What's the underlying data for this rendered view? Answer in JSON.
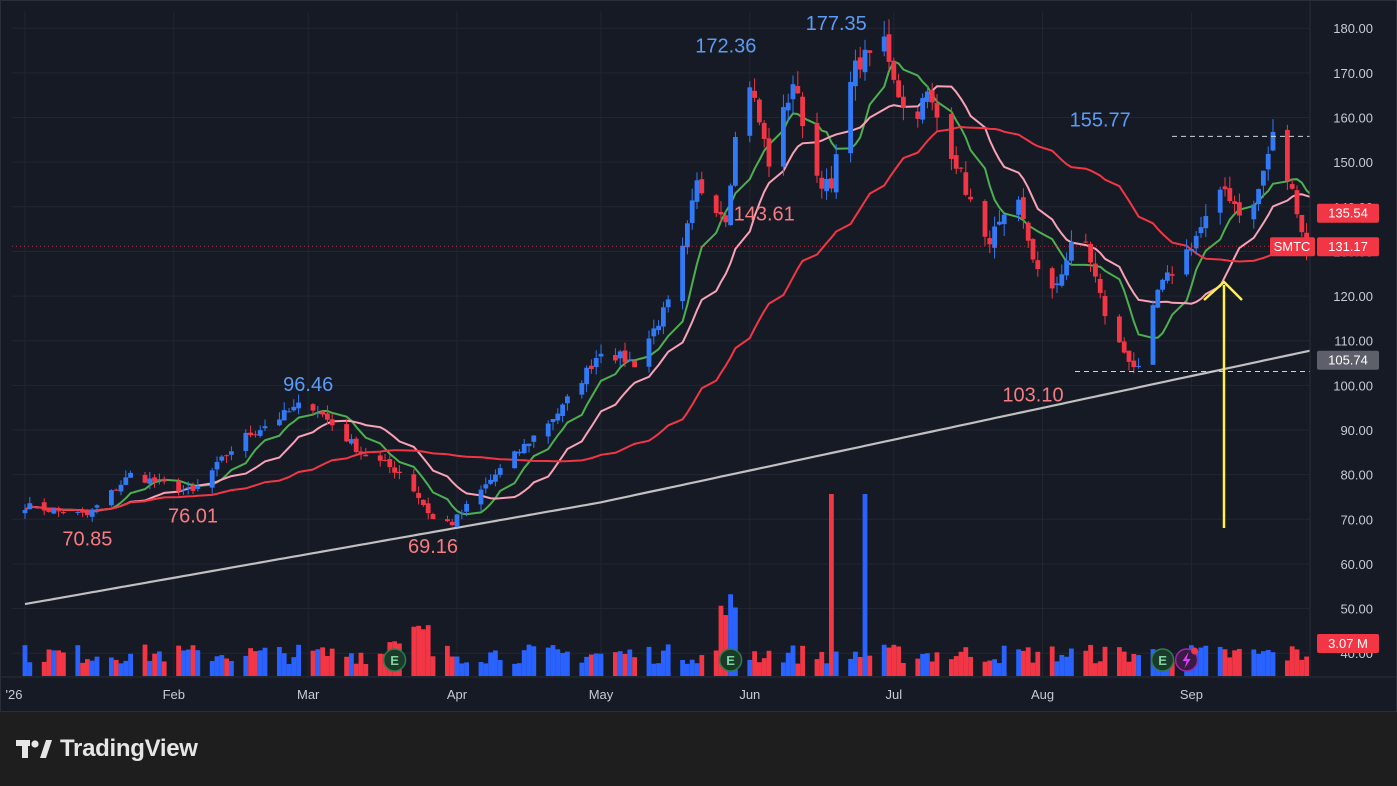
{
  "app": {
    "brand": "TradingView"
  },
  "chart_data": {
    "type": "candlestick",
    "symbol": "SMTC",
    "price_axis": {
      "ticks": [
        "180.00",
        "170.00",
        "160.00",
        "150.00",
        "140.00",
        "130.00",
        "120.00",
        "110.00",
        "100.00",
        "90.00",
        "80.00",
        "70.00",
        "60.00",
        "50.00",
        "40.00"
      ],
      "range": [
        40,
        183
      ]
    },
    "time_axis": {
      "labels": [
        "'26",
        "Feb",
        "Mar",
        "Apr",
        "May",
        "Jun",
        "Jul",
        "Aug",
        "Sep"
      ]
    },
    "price_tags": [
      {
        "text": "135.54",
        "value": 135.54,
        "color": "#f23645"
      },
      {
        "text": "131.17",
        "value": 131.17,
        "color": "#f23645",
        "symbol_label": "SMTC"
      },
      {
        "text": "105.74",
        "value": 105.74,
        "color": "#5d606b"
      }
    ],
    "volume_tag": {
      "text": "3.07 M",
      "color": "#f23645"
    },
    "annotations": [
      {
        "text": "70.85",
        "x": "Jan 14",
        "y": 70.85,
        "color": "#f77c80"
      },
      {
        "text": "76.01",
        "x": "Feb 5",
        "y": 76.01,
        "color": "#f77c80"
      },
      {
        "text": "96.46",
        "x": "Mar 1",
        "y": 96.46,
        "color": "#5b9cf6"
      },
      {
        "text": "69.16",
        "x": "Mar 27",
        "y": 69.16,
        "color": "#f77c80"
      },
      {
        "text": "172.36",
        "x": "May 27",
        "y": 172.36,
        "color": "#5b9cf6"
      },
      {
        "text": "177.35",
        "x": "Jun 19",
        "y": 177.35,
        "color": "#5b9cf6"
      },
      {
        "text": "143.61",
        "x": "Jun 4",
        "y": 143.61,
        "color": "#f77c80"
      },
      {
        "text": "103.10",
        "x": "Jul 30",
        "y": 103.1,
        "color": "#f77c80"
      },
      {
        "text": "155.77",
        "x": "Aug 13",
        "y": 155.77,
        "color": "#5b9cf6"
      }
    ],
    "reference_lines": [
      {
        "y": 155.77,
        "style": "dashed",
        "color": "#cfd2da"
      },
      {
        "y": 103.1,
        "style": "dashed",
        "color": "#cfd2da"
      }
    ],
    "series": [
      {
        "role": "ma-short",
        "color": "#4caf50"
      },
      {
        "role": "ma-mid",
        "color": "#f8a1b7"
      },
      {
        "role": "ma-long",
        "color": "#f23645"
      },
      {
        "role": "ma-200",
        "color": "#c0c0c0"
      }
    ],
    "earnings_markers": [
      "Mar 19",
      "May 28",
      "Aug 26"
    ],
    "arrow": {
      "color": "#fff14a"
    },
    "colors": {
      "up": "#2962ff",
      "down": "#f23645",
      "up_candle": "#3179f5"
    }
  }
}
